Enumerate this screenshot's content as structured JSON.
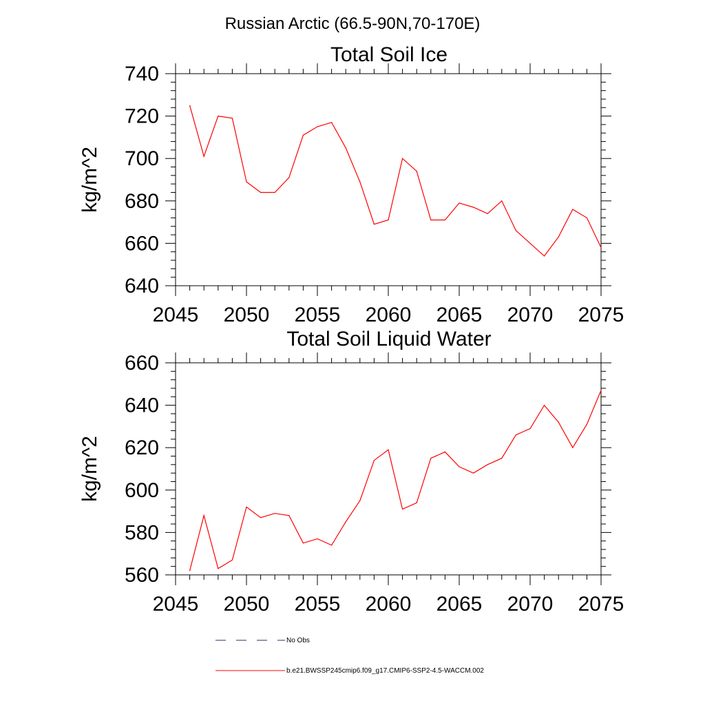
{
  "figure": {
    "suptitle": "Russian Arctic (66.5-90N,70-170E)"
  },
  "legend": {
    "entries": [
      {
        "label": "No Obs",
        "color": "#2b2b6b",
        "style": "dashed"
      },
      {
        "label": "b.e21.BWSSP245cmip6.f09_g17.CMIP6-SSP2-4.5-WACCM.002",
        "color": "#ff0000",
        "style": "solid"
      }
    ]
  },
  "chart_data": [
    {
      "type": "line",
      "title": "Total Soil Ice",
      "xlabel": "",
      "ylabel": "kg/m^2",
      "xlim": [
        2045,
        2075
      ],
      "ylim": [
        640,
        740
      ],
      "xticks": [
        2045,
        2050,
        2055,
        2060,
        2065,
        2070,
        2075
      ],
      "yticks": [
        640,
        660,
        680,
        700,
        720,
        740
      ],
      "grid": false,
      "x": [
        2046,
        2047,
        2048,
        2049,
        2050,
        2051,
        2052,
        2053,
        2054,
        2055,
        2056,
        2057,
        2058,
        2059,
        2060,
        2061,
        2062,
        2063,
        2064,
        2065,
        2066,
        2067,
        2068,
        2069,
        2070,
        2071,
        2072,
        2073,
        2074,
        2075
      ],
      "series": [
        {
          "color": "#ff0000",
          "values": [
            725,
            701,
            720,
            719,
            689,
            684,
            684,
            691,
            711,
            715,
            717,
            705,
            689,
            669,
            671,
            700,
            694,
            671,
            671,
            679,
            677,
            674,
            680,
            666,
            660,
            654,
            663,
            676,
            672,
            658
          ]
        }
      ]
    },
    {
      "type": "line",
      "title": "Total Soil Liquid Water",
      "xlabel": "",
      "ylabel": "kg/m^2",
      "xlim": [
        2045,
        2075
      ],
      "ylim": [
        560,
        660
      ],
      "xticks": [
        2045,
        2050,
        2055,
        2060,
        2065,
        2070,
        2075
      ],
      "yticks": [
        560,
        580,
        600,
        620,
        640,
        660
      ],
      "grid": false,
      "x": [
        2046,
        2047,
        2048,
        2049,
        2050,
        2051,
        2052,
        2053,
        2054,
        2055,
        2056,
        2057,
        2058,
        2059,
        2060,
        2061,
        2062,
        2063,
        2064,
        2065,
        2066,
        2067,
        2068,
        2069,
        2070,
        2071,
        2072,
        2073,
        2074,
        2075
      ],
      "series": [
        {
          "color": "#ff0000",
          "values": [
            562,
            588,
            563,
            567,
            592,
            587,
            589,
            588,
            575,
            577,
            574,
            585,
            595,
            614,
            619,
            591,
            594,
            615,
            618,
            611,
            608,
            612,
            615,
            626,
            629,
            640,
            632,
            620,
            631,
            647
          ]
        }
      ]
    }
  ]
}
